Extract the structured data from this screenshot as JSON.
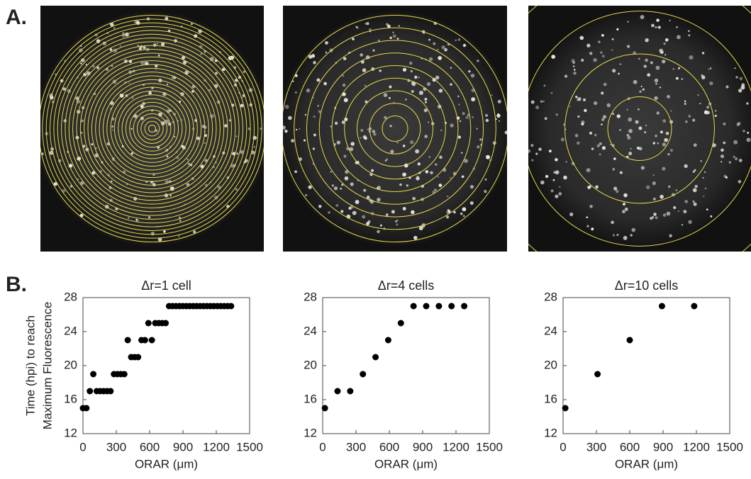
{
  "panel_labels": [
    "A.",
    "B."
  ],
  "chart_data": [
    {
      "type": "scatter",
      "title": "Δr=1 cell",
      "xlabel": "ORAR (μm)",
      "ylabel": [
        "Time (hpi) to reach",
        "Maximum Fluorescence"
      ],
      "color": "#000000",
      "x": [
        0,
        31,
        62,
        93,
        124,
        155,
        186,
        217,
        248,
        279,
        310,
        341,
        372,
        403,
        434,
        465,
        496,
        527,
        558,
        589,
        620,
        651,
        682,
        713,
        744,
        775,
        806,
        837,
        868,
        899,
        930,
        961,
        992,
        1023,
        1054,
        1085,
        1116,
        1147,
        1178,
        1209,
        1240,
        1271,
        1302,
        1333
      ],
      "values": [
        15,
        15,
        17,
        19,
        17,
        17,
        17,
        17,
        17,
        19,
        19,
        19,
        19,
        23,
        21,
        21,
        21,
        23,
        23,
        25,
        23,
        25,
        25,
        25,
        25,
        27,
        27,
        27,
        27,
        27,
        27,
        27,
        27,
        27,
        27,
        27,
        27,
        27,
        27,
        27,
        27,
        27,
        27,
        27
      ],
      "xlim": [
        0,
        1500
      ],
      "xticks": [
        0,
        300,
        600,
        900,
        1200,
        1500
      ],
      "ylim": [
        12,
        28
      ],
      "yticks": [
        12,
        16,
        20,
        24,
        28
      ]
    },
    {
      "type": "scatter",
      "title": "Δr=4 cells",
      "xlabel": "ORAR (μm)",
      "color": "#000000",
      "x": [
        20,
        134,
        248,
        362,
        476,
        590,
        704,
        818,
        932,
        1046,
        1160,
        1274
      ],
      "values": [
        15,
        17,
        17,
        19,
        21,
        23,
        25,
        27,
        27,
        27,
        27,
        27
      ],
      "xlim": [
        0,
        1500
      ],
      "xticks": [
        0,
        300,
        600,
        900,
        1200,
        1500
      ],
      "ylim": [
        12,
        28
      ],
      "yticks": [
        12,
        16,
        20,
        24,
        28
      ]
    },
    {
      "type": "scatter",
      "title": "Δr=10 cells",
      "xlabel": "ORAR (μm)",
      "color": "#000000",
      "x": [
        20,
        310,
        600,
        890,
        1180
      ],
      "values": [
        15,
        19,
        23,
        27,
        27
      ],
      "xlim": [
        0,
        1500
      ],
      "xticks": [
        0,
        300,
        600,
        900,
        1200,
        1500
      ],
      "ylim": [
        12,
        28
      ],
      "yticks": [
        12,
        16,
        20,
        24,
        28
      ]
    }
  ]
}
